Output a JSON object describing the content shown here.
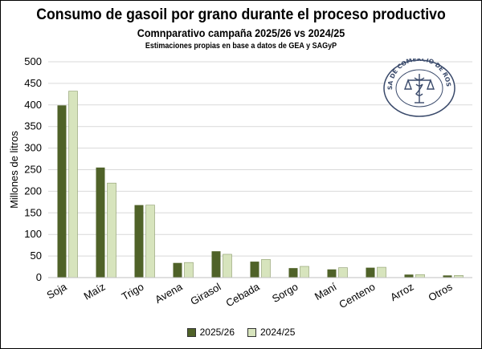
{
  "header": {
    "title": "Consumo de gasoil por grano durante el proceso productivo",
    "subtitle": "Comnparativo campaña 2025/26 vs 2024/25",
    "note": "Estimaciones propias en base a datos de GEA y SAGyP"
  },
  "seal": {
    "text": "BOLSA DE COMERCIO DE ROSARIO",
    "color": "#3a4a6b"
  },
  "chart_data": {
    "type": "bar",
    "title": "Consumo de gasoil por grano durante el proceso productivo",
    "ylabel": "Millones de litros",
    "xlabel": "",
    "ylim": [
      0,
      500
    ],
    "yticks": [
      0,
      50,
      100,
      150,
      200,
      250,
      300,
      350,
      400,
      450,
      500
    ],
    "grid": true,
    "legend_position": "bottom",
    "categories": [
      "Soja",
      "Maíz",
      "Trigo",
      "Avena",
      "Girasol",
      "Cebada",
      "Sorgo",
      "Maní",
      "Centeno",
      "Arroz",
      "Otros"
    ],
    "series": [
      {
        "name": "2025/26",
        "color": "#4f6228",
        "values": [
          399,
          255,
          168,
          34,
          61,
          37,
          22,
          19,
          23,
          7,
          5
        ]
      },
      {
        "name": "2024/25",
        "color": "#d7e4bd",
        "values": [
          432,
          219,
          168,
          35,
          54,
          42,
          26,
          23,
          24,
          7,
          5
        ]
      }
    ]
  }
}
